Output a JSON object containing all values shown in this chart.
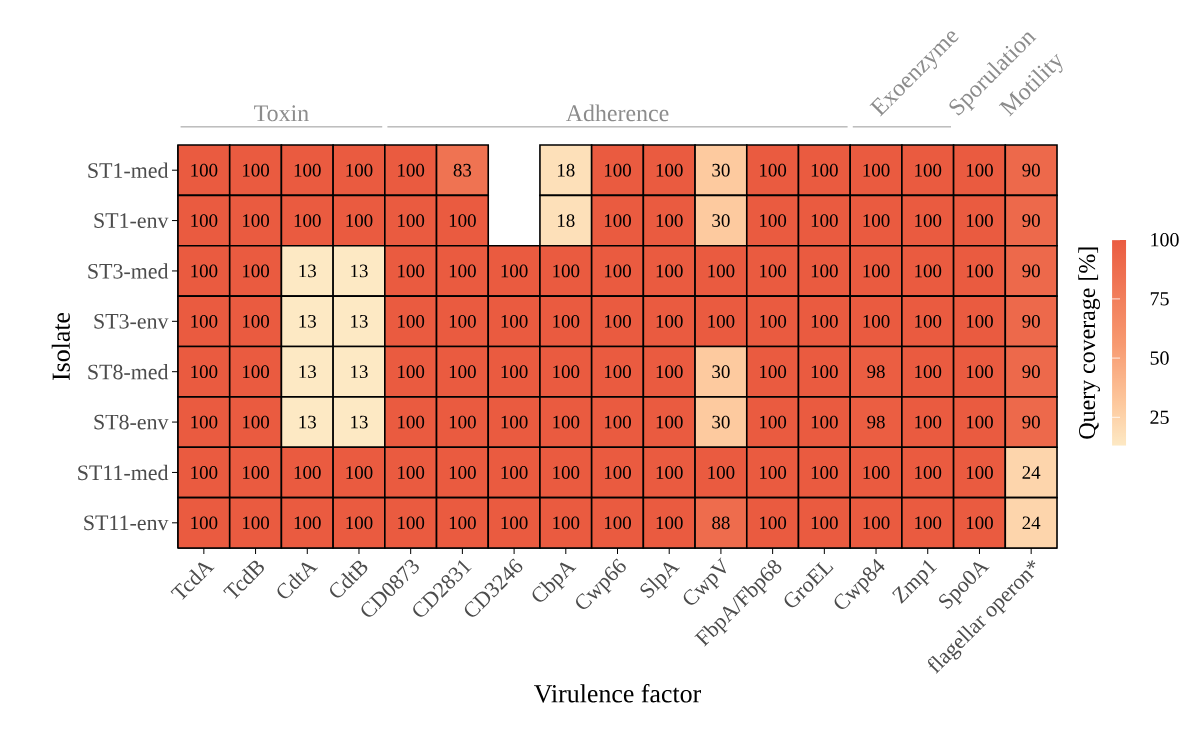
{
  "chart_data": {
    "type": "heatmap",
    "xlabel": "Virulence factor",
    "ylabel": "Isolate",
    "clabel": "Query coverage [%]",
    "categories": [
      "TcdA",
      "TcdB",
      "CdtA",
      "CdtB",
      "CD0873",
      "CD2831",
      "CD3246",
      "CbpA",
      "Cwp66",
      "SlpA",
      "CwpV",
      "FbpA/Fbp68",
      "GroEL",
      "Cwp84",
      "Zmp1",
      "Spo0A",
      "flagellar operon*"
    ],
    "y_categories": [
      "ST1-med",
      "ST1-env",
      "ST3-med",
      "ST3-env",
      "ST8-med",
      "ST8-env",
      "ST11-med",
      "ST11-env"
    ],
    "cells": [
      [
        100,
        100,
        100,
        100,
        100,
        83,
        null,
        18,
        100,
        100,
        30,
        100,
        100,
        100,
        100,
        100,
        90
      ],
      [
        100,
        100,
        100,
        100,
        100,
        100,
        null,
        18,
        100,
        100,
        30,
        100,
        100,
        100,
        100,
        100,
        90
      ],
      [
        100,
        100,
        13,
        13,
        100,
        100,
        100,
        100,
        100,
        100,
        100,
        100,
        100,
        100,
        100,
        100,
        90
      ],
      [
        100,
        100,
        13,
        13,
        100,
        100,
        100,
        100,
        100,
        100,
        100,
        100,
        100,
        100,
        100,
        100,
        90
      ],
      [
        100,
        100,
        13,
        13,
        100,
        100,
        100,
        100,
        100,
        100,
        30,
        100,
        100,
        98,
        100,
        100,
        90
      ],
      [
        100,
        100,
        13,
        13,
        100,
        100,
        100,
        100,
        100,
        100,
        30,
        100,
        100,
        98,
        100,
        100,
        90
      ],
      [
        100,
        100,
        100,
        100,
        100,
        100,
        100,
        100,
        100,
        100,
        100,
        100,
        100,
        100,
        100,
        100,
        24
      ],
      [
        100,
        100,
        100,
        100,
        100,
        100,
        100,
        100,
        100,
        100,
        88,
        100,
        100,
        100,
        100,
        100,
        24
      ]
    ],
    "data_labels": true,
    "clim": [
      13,
      100
    ],
    "cticks": [
      25,
      50,
      75,
      100
    ],
    "annotations": [
      "Toxin",
      "Adherence",
      "Exoenzyme",
      "Sporulation",
      "Motility"
    ]
  }
}
